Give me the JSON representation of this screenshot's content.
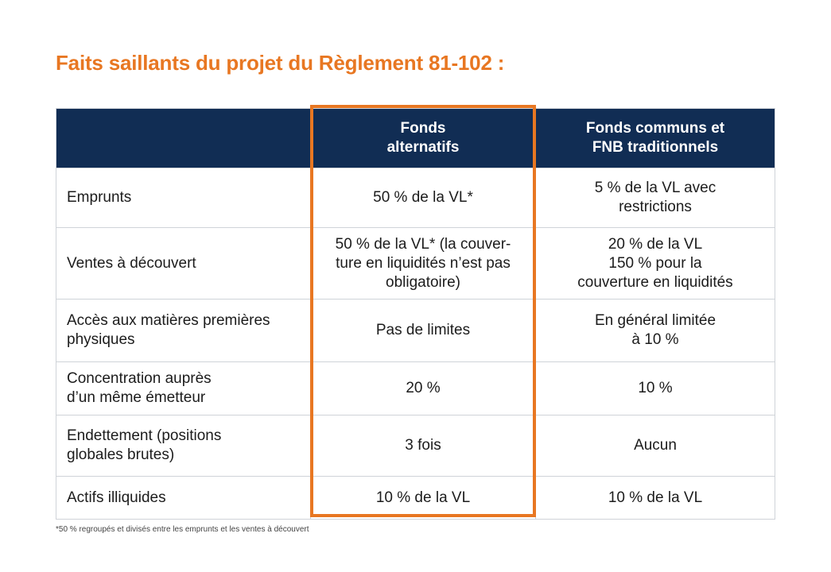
{
  "title": "Faits saillants du projet du Règlement 81-102 :",
  "table": {
    "headers": [
      "",
      "Fonds\nalternatifs",
      "Fonds communs et\nFNB traditionnels"
    ],
    "rows": [
      {
        "label": "Emprunts",
        "alt": "50 % de la VL*",
        "trad": "5 % de la VL avec\nrestrictions"
      },
      {
        "label": "Ventes à découvert",
        "alt": "50 % de la VL* (la couver-\nture en liquidités n’est pas\nobligatoire)",
        "trad": "20 % de la VL\n150 % pour la\ncouverture en liquidités"
      },
      {
        "label": "Accès aux matières premières\nphysiques",
        "alt": "Pas de limites",
        "trad": "En général limitée\nà 10 %"
      },
      {
        "label": "Concentration auprès\nd’un même émetteur",
        "alt": "20 %",
        "trad": "10 %"
      },
      {
        "label": "Endettement (positions\nglobales brutes)",
        "alt": "3 fois",
        "trad": "Aucun"
      },
      {
        "label": "Actifs illiquides",
        "alt": "10 % de la VL",
        "trad": "10 % de la VL"
      }
    ]
  },
  "colors": {
    "accent": "#e87722",
    "header_bg": "#112d54",
    "header_text": "#ffffff",
    "grid": "#cfd3d8"
  },
  "footnote": "*50 % regroupés et divisés entre les emprunts et les ventes à découvert"
}
